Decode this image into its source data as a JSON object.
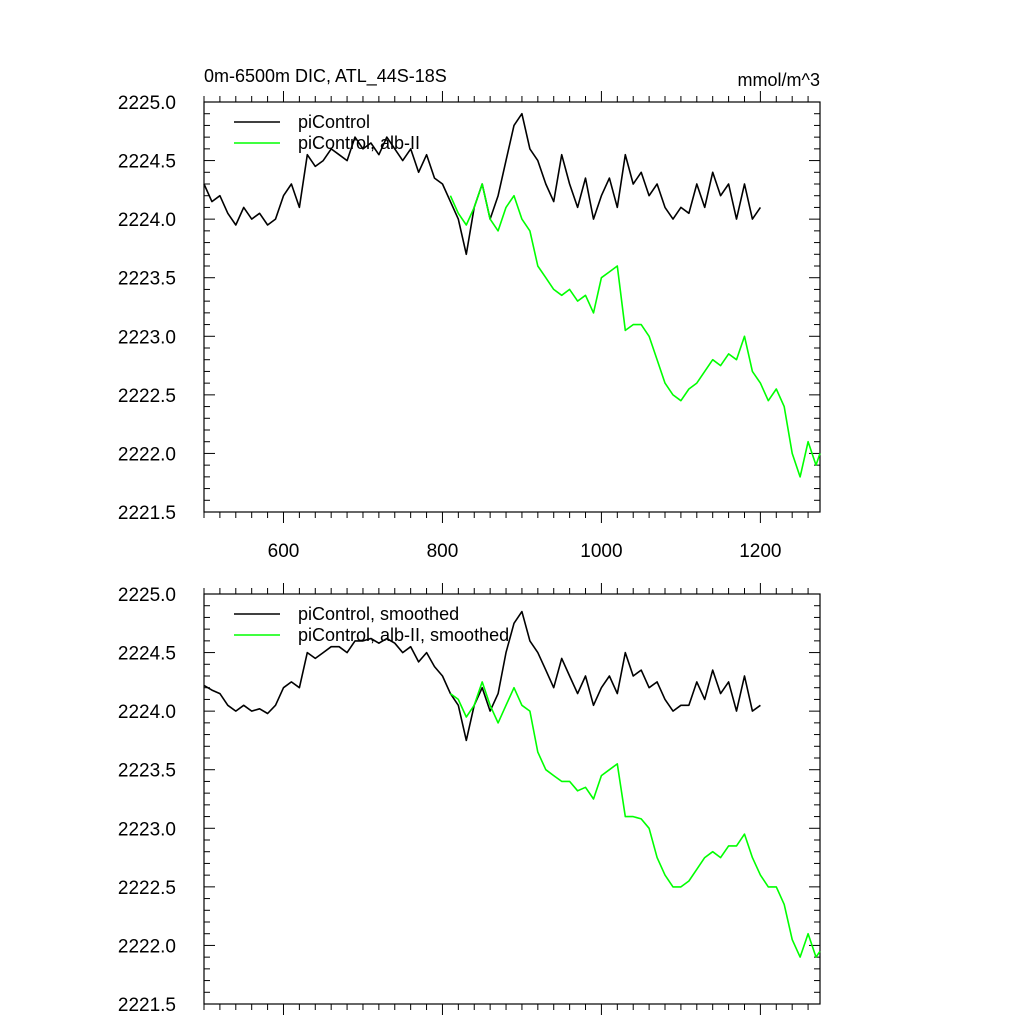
{
  "figure": {
    "title": "0m-6500m DIC, ATL_44S-18S",
    "units": "mmol/m^3"
  },
  "chart_data": [
    {
      "type": "line",
      "title": "0m-6500m DIC, ATL_44S-18S",
      "units": "mmol/m^3",
      "xlim": [
        500,
        1275
      ],
      "ylim": [
        2221.5,
        2225.0
      ],
      "x_ticks": [
        600,
        800,
        1000,
        1200
      ],
      "x_tick_labels": [
        "600",
        "800",
        "1000",
        "1200"
      ],
      "y_ticks": [
        2221.5,
        2222.0,
        2222.5,
        2223.0,
        2223.5,
        2224.0,
        2224.5,
        2225.0
      ],
      "y_tick_labels": [
        "2221.5",
        "2222.0",
        "2222.5",
        "2223.0",
        "2223.5",
        "2224.0",
        "2224.5",
        "2225.0"
      ],
      "legend_position": "top-left",
      "series": [
        {
          "name": "piControl",
          "color": "#000000",
          "x": [
            500,
            510,
            520,
            530,
            540,
            550,
            560,
            570,
            580,
            590,
            600,
            610,
            620,
            630,
            640,
            650,
            660,
            670,
            680,
            690,
            700,
            710,
            720,
            730,
            740,
            750,
            760,
            770,
            780,
            790,
            800,
            810,
            820,
            830,
            840,
            850,
            860,
            870,
            880,
            890,
            900,
            910,
            920,
            930,
            940,
            950,
            960,
            970,
            980,
            990,
            1000,
            1010,
            1020,
            1030,
            1040,
            1050,
            1060,
            1070,
            1080,
            1090,
            1100,
            1110,
            1120,
            1130,
            1140,
            1150,
            1160,
            1170,
            1180,
            1190,
            1200
          ],
          "values": [
            2224.3,
            2224.15,
            2224.2,
            2224.05,
            2223.95,
            2224.1,
            2224.0,
            2224.05,
            2223.95,
            2224.0,
            2224.2,
            2224.3,
            2224.1,
            2224.55,
            2224.45,
            2224.5,
            2224.6,
            2224.55,
            2224.5,
            2224.7,
            2224.6,
            2224.65,
            2224.55,
            2224.7,
            2224.6,
            2224.5,
            2224.6,
            2224.4,
            2224.55,
            2224.35,
            2224.3,
            2224.15,
            2224.0,
            2223.7,
            2224.1,
            2224.3,
            2224.0,
            2224.2,
            2224.5,
            2224.8,
            2224.9,
            2224.6,
            2224.5,
            2224.3,
            2224.15,
            2224.55,
            2224.3,
            2224.1,
            2224.35,
            2224.0,
            2224.2,
            2224.35,
            2224.1,
            2224.55,
            2224.3,
            2224.4,
            2224.2,
            2224.3,
            2224.1,
            2224.0,
            2224.1,
            2224.05,
            2224.3,
            2224.1,
            2224.4,
            2224.2,
            2224.3,
            2224.0,
            2224.3,
            2224.0,
            2224.1
          ]
        },
        {
          "name": "piControl, alb-II",
          "color": "#00ff00",
          "x": [
            810,
            820,
            830,
            840,
            850,
            860,
            870,
            880,
            890,
            900,
            910,
            920,
            930,
            940,
            950,
            960,
            970,
            980,
            990,
            1000,
            1010,
            1020,
            1030,
            1040,
            1050,
            1060,
            1070,
            1080,
            1090,
            1100,
            1110,
            1120,
            1130,
            1140,
            1150,
            1160,
            1170,
            1180,
            1190,
            1200,
            1210,
            1220,
            1230,
            1240,
            1250,
            1260,
            1270,
            1275
          ],
          "values": [
            2224.2,
            2224.05,
            2223.95,
            2224.1,
            2224.3,
            2224.0,
            2223.9,
            2224.1,
            2224.2,
            2224.0,
            2223.9,
            2223.6,
            2223.5,
            2223.4,
            2223.35,
            2223.4,
            2223.3,
            2223.35,
            2223.2,
            2223.5,
            2223.55,
            2223.6,
            2223.05,
            2223.1,
            2223.1,
            2223.0,
            2222.8,
            2222.6,
            2222.5,
            2222.45,
            2222.55,
            2222.6,
            2222.7,
            2222.8,
            2222.75,
            2222.85,
            2222.8,
            2223.0,
            2222.7,
            2222.6,
            2222.45,
            2222.55,
            2222.4,
            2222.0,
            2221.8,
            2222.1,
            2221.9,
            2222.0
          ]
        }
      ]
    },
    {
      "type": "line",
      "xlim": [
        500,
        1275
      ],
      "ylim": [
        2221.5,
        2225.0
      ],
      "x_ticks": [
        600,
        800,
        1000,
        1200
      ],
      "y_ticks": [
        2221.5,
        2222.0,
        2222.5,
        2223.0,
        2223.5,
        2224.0,
        2224.5,
        2225.0
      ],
      "y_tick_labels": [
        "2221.5",
        "2222.0",
        "2222.5",
        "2223.0",
        "2223.5",
        "2224.0",
        "2224.5",
        "2225.0"
      ],
      "legend_position": "top-left",
      "series": [
        {
          "name": "piControl, smoothed",
          "color": "#000000",
          "x": [
            500,
            510,
            520,
            530,
            540,
            550,
            560,
            570,
            580,
            590,
            600,
            610,
            620,
            630,
            640,
            650,
            660,
            670,
            680,
            690,
            700,
            710,
            720,
            730,
            740,
            750,
            760,
            770,
            780,
            790,
            800,
            810,
            820,
            830,
            840,
            850,
            860,
            870,
            880,
            890,
            900,
            910,
            920,
            930,
            940,
            950,
            960,
            970,
            980,
            990,
            1000,
            1010,
            1020,
            1030,
            1040,
            1050,
            1060,
            1070,
            1080,
            1090,
            1100,
            1110,
            1120,
            1130,
            1140,
            1150,
            1160,
            1170,
            1180,
            1190,
            1200
          ],
          "values": [
            2224.22,
            2224.18,
            2224.15,
            2224.05,
            2224.0,
            2224.05,
            2224.0,
            2224.02,
            2223.98,
            2224.05,
            2224.2,
            2224.25,
            2224.2,
            2224.5,
            2224.45,
            2224.5,
            2224.55,
            2224.55,
            2224.5,
            2224.6,
            2224.6,
            2224.62,
            2224.58,
            2224.62,
            2224.58,
            2224.5,
            2224.55,
            2224.42,
            2224.5,
            2224.38,
            2224.3,
            2224.15,
            2224.05,
            2223.75,
            2224.05,
            2224.2,
            2224.0,
            2224.15,
            2224.5,
            2224.75,
            2224.85,
            2224.6,
            2224.5,
            2224.35,
            2224.2,
            2224.45,
            2224.3,
            2224.15,
            2224.3,
            2224.05,
            2224.2,
            2224.3,
            2224.15,
            2224.5,
            2224.3,
            2224.35,
            2224.2,
            2224.25,
            2224.1,
            2224.0,
            2224.05,
            2224.05,
            2224.25,
            2224.1,
            2224.35,
            2224.15,
            2224.25,
            2224.0,
            2224.3,
            2224.0,
            2224.05
          ]
        },
        {
          "name": "piControl, alb-II, smoothed",
          "color": "#00ff00",
          "x": [
            810,
            820,
            830,
            840,
            850,
            860,
            870,
            880,
            890,
            900,
            910,
            920,
            930,
            940,
            950,
            960,
            970,
            980,
            990,
            1000,
            1010,
            1020,
            1030,
            1040,
            1050,
            1060,
            1070,
            1080,
            1090,
            1100,
            1110,
            1120,
            1130,
            1140,
            1150,
            1160,
            1170,
            1180,
            1190,
            1200,
            1210,
            1220,
            1230,
            1240,
            1250,
            1260,
            1270,
            1275
          ],
          "values": [
            2224.15,
            2224.1,
            2223.95,
            2224.05,
            2224.25,
            2224.05,
            2223.9,
            2224.05,
            2224.2,
            2224.05,
            2224.0,
            2223.65,
            2223.5,
            2223.45,
            2223.4,
            2223.4,
            2223.32,
            2223.35,
            2223.25,
            2223.45,
            2223.5,
            2223.55,
            2223.1,
            2223.1,
            2223.08,
            2223.0,
            2222.75,
            2222.6,
            2222.5,
            2222.5,
            2222.55,
            2222.65,
            2222.75,
            2222.8,
            2222.75,
            2222.85,
            2222.85,
            2222.95,
            2222.75,
            2222.6,
            2222.5,
            2222.5,
            2222.35,
            2222.05,
            2221.9,
            2222.1,
            2221.9,
            2221.95
          ]
        }
      ]
    }
  ]
}
